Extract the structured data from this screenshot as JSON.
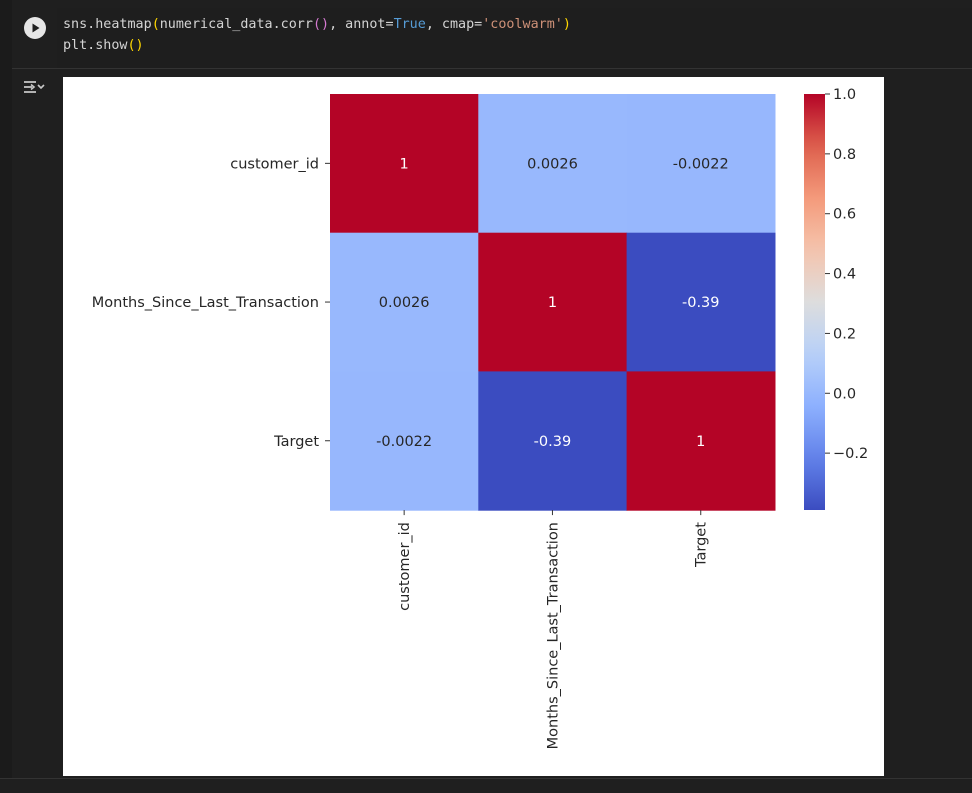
{
  "code_cell": {
    "line1": {
      "t1": "sns.heatmap",
      "p1": "(",
      "t2": "numerical_data.corr",
      "p2": "()",
      "t3": ", annot=",
      "kw": "True",
      "t4": ", cmap=",
      "str": "'coolwarm'",
      "p3": ")"
    },
    "line2": {
      "t1": "plt.show",
      "p1": "()"
    }
  },
  "icons": {
    "run": "play-icon",
    "output": "output-toggle-icon"
  },
  "chart_data": {
    "type": "heatmap",
    "row_labels": [
      "customer_id",
      "Months_Since_Last_Transaction",
      "Target"
    ],
    "col_labels": [
      "customer_id",
      "Months_Since_Last_Transaction",
      "Target"
    ],
    "values": [
      [
        1,
        0.0026,
        -0.0022
      ],
      [
        0.0026,
        1,
        -0.39
      ],
      [
        -0.0022,
        -0.39,
        1
      ]
    ],
    "annotations": [
      [
        "1",
        "0.0026",
        "-0.0022"
      ],
      [
        "0.0026",
        "1",
        "-0.39"
      ],
      [
        "-0.0022",
        "-0.39",
        "1"
      ]
    ],
    "colormap": "coolwarm",
    "vmin": -0.39,
    "vmax": 1,
    "colorbar_ticks": [
      1.0,
      0.8,
      0.6,
      0.4,
      0.2,
      0.0,
      -0.2
    ],
    "colorbar_tick_labels": [
      "1.0",
      "0.8",
      "0.6",
      "0.4",
      "0.2",
      "0.0",
      "−0.2"
    ]
  }
}
